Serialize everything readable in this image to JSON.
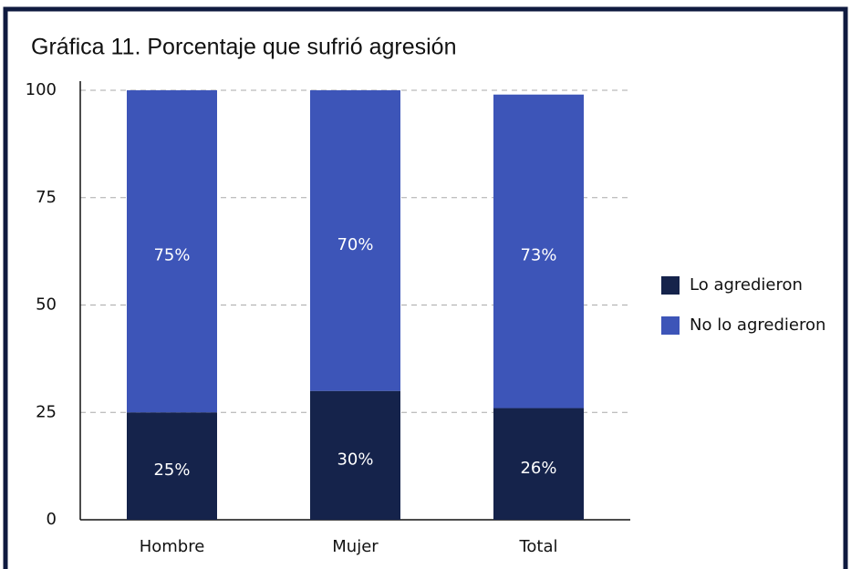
{
  "chart_data": {
    "type": "stacked_bar",
    "title": "Gráfica 11. Porcentaje que sufrió agresión",
    "categories": [
      "Hombre",
      "Mujer",
      "Total"
    ],
    "series": [
      {
        "name": "Lo agredieron",
        "color": "#15234b",
        "values": [
          25,
          30,
          26
        ],
        "value_labels": [
          "25%",
          "30%",
          "26%"
        ]
      },
      {
        "name": "No lo agredieron",
        "color": "#3d55b8",
        "values": [
          75,
          70,
          73
        ],
        "value_labels": [
          "75%",
          "70%",
          "73%"
        ]
      }
    ],
    "ylim": [
      0,
      100
    ],
    "yticks": [
      0,
      25,
      50,
      75,
      100
    ],
    "grid": true,
    "legend": "right"
  }
}
